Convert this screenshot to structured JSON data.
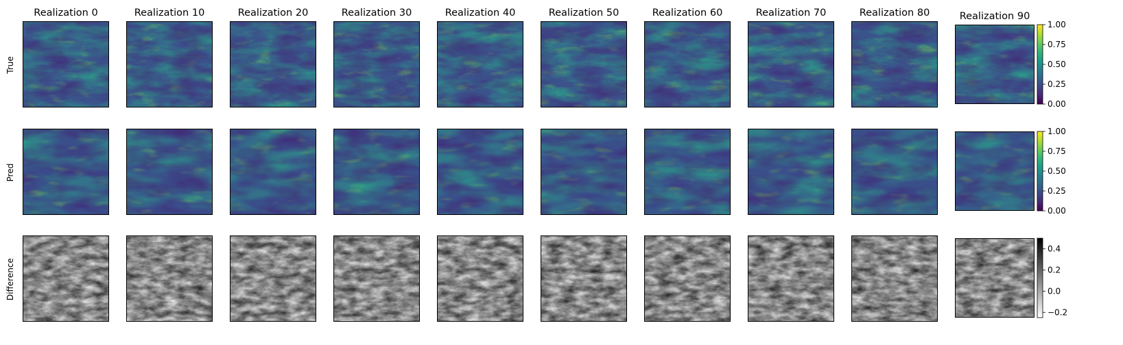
{
  "chart_data": {
    "type": "heatmap",
    "columns": [
      "Realization 0",
      "Realization 10",
      "Realization 20",
      "Realization 30",
      "Realization 40",
      "Realization 50",
      "Realization 60",
      "Realization 70",
      "Realization 80",
      "Realization 90"
    ],
    "rows": [
      "True",
      "Pred",
      "Difference"
    ],
    "colormaps": {
      "True": "viridis",
      "Pred": "viridis",
      "Difference": "Greys"
    },
    "colorbars": [
      {
        "row": "True",
        "colormap": "viridis",
        "range": [
          0.0,
          1.0
        ],
        "ticks": [
          "0.00",
          "0.25",
          "0.50",
          "0.75",
          "1.00"
        ]
      },
      {
        "row": "Pred",
        "colormap": "viridis",
        "range": [
          0.0,
          1.0
        ],
        "ticks": [
          "0.00",
          "0.25",
          "0.50",
          "0.75",
          "1.00"
        ]
      },
      {
        "row": "Difference",
        "colormap": "Greys",
        "range": [
          -0.25,
          0.5
        ],
        "ticks": [
          "−0.2",
          "0.0",
          "0.2",
          "0.4"
        ]
      }
    ],
    "grid": false
  },
  "colors": {
    "viridis": [
      "#440154",
      "#482878",
      "#3e4989",
      "#31688e",
      "#26828e",
      "#1f9e89",
      "#35b779",
      "#6ece58",
      "#b5de2b",
      "#fde725"
    ],
    "frame": "#000000"
  }
}
